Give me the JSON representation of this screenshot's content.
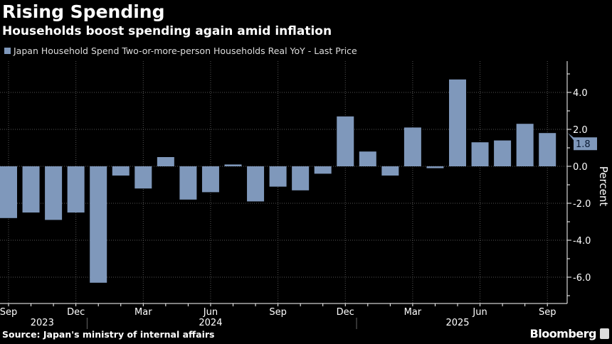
{
  "title": "Rising Spending",
  "subtitle": "Households boost spending again amid inflation",
  "source": "Source: Japan's ministry of internal affairs",
  "brand": "Bloomberg",
  "chart_data": {
    "type": "bar",
    "title": "Rising Spending",
    "subtitle": "Households boost spending again amid inflation",
    "ylabel": "Percent",
    "ylim": [
      -7.2,
      5.8
    ],
    "grid": true,
    "legend_placement": "top-left",
    "bar_color": "#7f98bb",
    "yticks": [
      4.0,
      2.0,
      0.0,
      -2.0,
      -4.0,
      -6.0
    ],
    "ytick_labels": [
      "4.0",
      "2.0",
      "0.0",
      "-2.0",
      "-4.0",
      "-6.0"
    ],
    "last_value_label": "1.8",
    "categories": [
      "2023-09",
      "2023-10",
      "2023-11",
      "2023-12",
      "2024-01",
      "2024-02",
      "2024-03",
      "2024-04",
      "2024-05",
      "2024-06",
      "2024-07",
      "2024-08",
      "2024-09",
      "2024-10",
      "2024-11",
      "2024-12",
      "2025-01",
      "2025-02",
      "2025-03",
      "2025-04",
      "2025-05",
      "2025-06",
      "2025-07",
      "2025-08",
      "2025-09"
    ],
    "series": [
      {
        "name": "Japan Household Spend Two-or-more-person Households Real YoY - Last Price",
        "values": [
          -2.8,
          -2.5,
          -2.9,
          -2.5,
          -6.3,
          -0.5,
          -1.2,
          0.5,
          -1.8,
          -1.4,
          0.1,
          -1.9,
          -1.1,
          -1.3,
          -0.4,
          2.7,
          0.8,
          -0.5,
          2.1,
          -0.1,
          4.7,
          1.3,
          1.4,
          2.3,
          1.8
        ]
      }
    ],
    "xtick_labels": [
      {
        "index": 0,
        "label": "Sep"
      },
      {
        "index": 3,
        "label": "Dec"
      },
      {
        "index": 6,
        "label": "Mar"
      },
      {
        "index": 9,
        "label": "Jun"
      },
      {
        "index": 12,
        "label": "Sep"
      },
      {
        "index": 15,
        "label": "Dec"
      },
      {
        "index": 18,
        "label": "Mar"
      },
      {
        "index": 21,
        "label": "Jun"
      },
      {
        "index": 24,
        "label": "Sep"
      }
    ],
    "year_labels": [
      "2023",
      "2024",
      "2025"
    ]
  }
}
